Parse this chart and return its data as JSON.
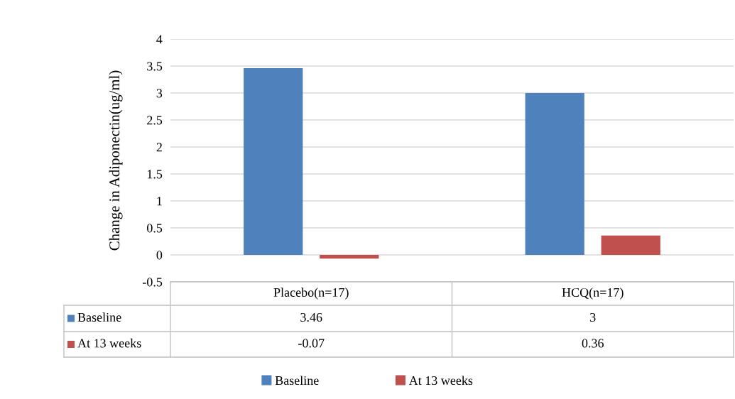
{
  "chart_data": {
    "type": "bar",
    "ylabel": "Change in Adiponectin(ug/ml)",
    "categories": [
      "Placebo(n=17)",
      "HCQ(n=17)"
    ],
    "series": [
      {
        "name": "Baseline",
        "color": "#4f81bd",
        "values": [
          3.46,
          3
        ]
      },
      {
        "name": "At 13 weeks",
        "color": "#c0504d",
        "values": [
          -0.07,
          0.36
        ]
      }
    ],
    "ylim": [
      -0.5,
      4
    ],
    "yticks": [
      -0.5,
      0,
      0.5,
      1,
      1.5,
      2,
      2.5,
      3,
      3.5,
      4
    ],
    "grid": "y",
    "legend": "bottom",
    "data_labels": true
  }
}
